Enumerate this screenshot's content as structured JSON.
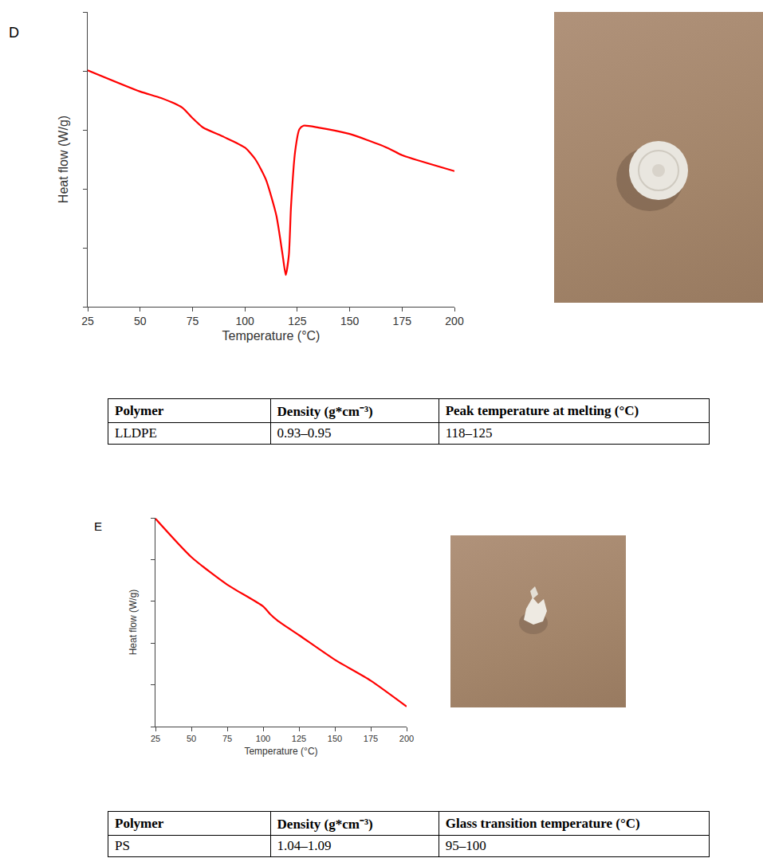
{
  "chart_data": [
    {
      "type": "line",
      "annotations": [
        "D"
      ],
      "x_label": "Temperature (°C)",
      "y_label": "Heat flow (W/g)",
      "x": [
        25,
        50,
        60,
        70,
        75,
        80,
        90,
        100,
        105,
        110,
        115,
        118,
        119.5,
        121,
        122,
        124,
        126,
        128,
        135,
        150,
        165,
        170,
        175,
        200
      ],
      "values": [
        4.01,
        3.65,
        3.54,
        3.38,
        3.2,
        3.04,
        2.88,
        2.7,
        2.5,
        2.16,
        1.55,
        0.88,
        0.54,
        0.88,
        1.69,
        2.64,
        3.01,
        3.07,
        3.04,
        2.93,
        2.74,
        2.66,
        2.57,
        2.3
      ],
      "color": "#ff0000",
      "xlim": [
        25,
        200
      ],
      "xticks": [
        25,
        50,
        75,
        100,
        125,
        150,
        175,
        200
      ],
      "ylim": [
        0,
        5
      ],
      "yticks": [
        0,
        1,
        2,
        3,
        4,
        5
      ],
      "tick_labels": "x",
      "grid": false
    },
    {
      "type": "line",
      "annotations": [
        "E"
      ],
      "x_label": "Temperature (°C)",
      "y_label": "Heat flow (W/g)",
      "x": [
        25,
        50,
        75,
        100,
        105,
        110,
        125,
        150,
        175,
        200
      ],
      "values": [
        4.98,
        4.06,
        3.4,
        2.88,
        2.69,
        2.54,
        2.19,
        1.6,
        1.1,
        0.48
      ],
      "color": "#ff0000",
      "xlim": [
        25,
        200
      ],
      "xticks": [
        25,
        50,
        75,
        100,
        125,
        150,
        175,
        200
      ],
      "ylim": [
        0,
        5
      ],
      "yticks": [
        0,
        1,
        2,
        3,
        4,
        5
      ],
      "tick_labels": "x",
      "grid": false
    }
  ],
  "tables": [
    {
      "header": [
        "Polymer",
        "Density (g*cm⁻³)",
        "Peak temperature at melting (°C)"
      ],
      "rows": [
        [
          "LLDPE",
          "0.93–0.95",
          "118–125"
        ]
      ]
    },
    {
      "header": [
        "Polymer",
        "Density (g*cm⁻³)",
        "Glass transition temperature (°C)"
      ],
      "rows": [
        [
          "PS",
          "1.04–1.09",
          "95–100"
        ]
      ]
    }
  ]
}
